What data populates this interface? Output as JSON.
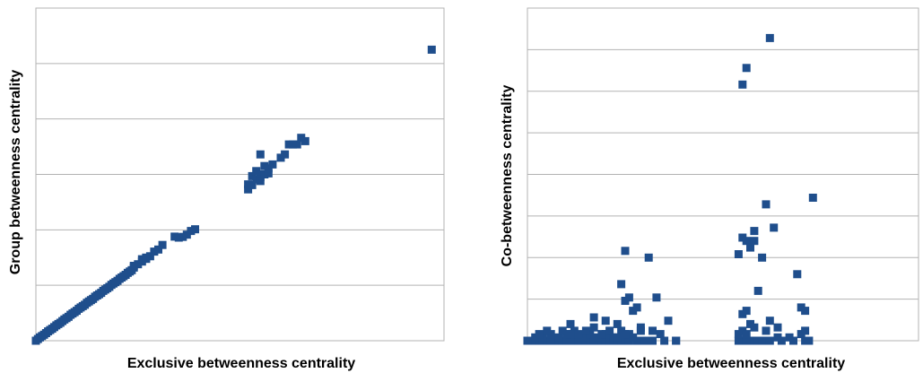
{
  "chart_data": [
    {
      "type": "scatter",
      "xlabel": "Exclusive betweenness centrality",
      "ylabel": "Group betweenness centrality",
      "xlim": [
        0,
        100
      ],
      "ylim": [
        0,
        100
      ],
      "grid": "horizontal",
      "tick_labels": "none",
      "marker": "square",
      "color": "#1f4e8c",
      "points": [
        [
          0,
          0
        ],
        [
          0.5,
          0.5
        ],
        [
          1,
          1
        ],
        [
          1.5,
          1.4
        ],
        [
          2,
          1.8
        ],
        [
          2.5,
          2.3
        ],
        [
          3,
          2.8
        ],
        [
          3.5,
          3.2
        ],
        [
          4,
          3.6
        ],
        [
          4.5,
          4.1
        ],
        [
          5,
          4.6
        ],
        [
          5.5,
          5
        ],
        [
          6,
          5.4
        ],
        [
          6.5,
          5.9
        ],
        [
          7,
          6.4
        ],
        [
          7.5,
          6.8
        ],
        [
          8,
          7.2
        ],
        [
          8.5,
          7.8
        ],
        [
          9,
          8.2
        ],
        [
          9.5,
          8.6
        ],
        [
          10,
          9
        ],
        [
          10.5,
          9.6
        ],
        [
          11,
          10
        ],
        [
          11.5,
          10.4
        ],
        [
          12,
          10.8
        ],
        [
          12.5,
          11.4
        ],
        [
          13,
          11.8
        ],
        [
          13.5,
          12.2
        ],
        [
          14,
          12.6
        ],
        [
          14.5,
          13.2
        ],
        [
          15,
          13.6
        ],
        [
          15.5,
          14
        ],
        [
          16,
          14.4
        ],
        [
          16.5,
          15
        ],
        [
          17,
          15.4
        ],
        [
          17.5,
          15.8
        ],
        [
          18,
          16.2
        ],
        [
          18.5,
          16.8
        ],
        [
          19,
          17.2
        ],
        [
          19.5,
          17.6
        ],
        [
          20,
          18
        ],
        [
          20.5,
          18.6
        ],
        [
          21,
          19
        ],
        [
          21.5,
          19.4
        ],
        [
          22,
          19.8
        ],
        [
          22.5,
          20.4
        ],
        [
          23,
          20.8
        ],
        [
          23.5,
          21.2
        ],
        [
          24,
          22
        ],
        [
          25,
          23
        ],
        [
          26,
          23.8
        ],
        [
          27,
          24.6
        ],
        [
          28,
          25.4
        ],
        [
          29,
          26.8
        ],
        [
          30,
          27.4
        ],
        [
          31,
          28.8
        ],
        [
          26,
          24.5
        ],
        [
          24,
          22.5
        ],
        [
          27,
          25
        ],
        [
          34,
          31.3
        ],
        [
          35,
          31
        ],
        [
          36,
          31.2
        ],
        [
          37,
          31.9
        ],
        [
          38,
          33
        ],
        [
          39,
          33.5
        ],
        [
          52,
          45.5
        ],
        [
          52,
          47
        ],
        [
          53,
          46.8
        ],
        [
          53,
          49.5
        ],
        [
          54,
          48.5
        ],
        [
          55,
          49.2
        ],
        [
          55,
          50
        ],
        [
          56,
          50
        ],
        [
          57,
          50.3
        ],
        [
          54,
          51
        ],
        [
          56,
          52.5
        ],
        [
          57,
          51.8
        ],
        [
          55,
          48
        ],
        [
          58,
          53
        ],
        [
          60,
          55
        ],
        [
          61,
          56
        ],
        [
          55,
          56
        ],
        [
          62,
          59
        ],
        [
          63,
          59
        ],
        [
          64,
          59
        ],
        [
          65,
          61
        ],
        [
          66,
          60
        ],
        [
          97,
          87.5
        ]
      ]
    },
    {
      "type": "scatter",
      "xlabel": "Exclusive betweenness centrality",
      "ylabel": "Co-betweenness centrality",
      "xlim": [
        0,
        100
      ],
      "ylim": [
        0,
        100
      ],
      "grid": "horizontal",
      "tick_labels": "none",
      "marker": "square",
      "color": "#1f4e8c",
      "points": [
        [
          0,
          0
        ],
        [
          1,
          0
        ],
        [
          2,
          0
        ],
        [
          3,
          0
        ],
        [
          4,
          0
        ],
        [
          5,
          0
        ],
        [
          6,
          0
        ],
        [
          7,
          0
        ],
        [
          8,
          0
        ],
        [
          9,
          0
        ],
        [
          10,
          0
        ],
        [
          11,
          0
        ],
        [
          12,
          0
        ],
        [
          13,
          0
        ],
        [
          14,
          0
        ],
        [
          15,
          0
        ],
        [
          16,
          0
        ],
        [
          17,
          0
        ],
        [
          18,
          0
        ],
        [
          19,
          0
        ],
        [
          20,
          0
        ],
        [
          21,
          0
        ],
        [
          22,
          0
        ],
        [
          23,
          0
        ],
        [
          24,
          0
        ],
        [
          25,
          0
        ],
        [
          26,
          0
        ],
        [
          28,
          0
        ],
        [
          30,
          0
        ],
        [
          32,
          0
        ],
        [
          35,
          0
        ],
        [
          38,
          0
        ],
        [
          2,
          1
        ],
        [
          4,
          1
        ],
        [
          6,
          2
        ],
        [
          8,
          1
        ],
        [
          10,
          2
        ],
        [
          12,
          3
        ],
        [
          14,
          1
        ],
        [
          16,
          2
        ],
        [
          18,
          1
        ],
        [
          20,
          2
        ],
        [
          22,
          1
        ],
        [
          24,
          3
        ],
        [
          26,
          2
        ],
        [
          3,
          2
        ],
        [
          5,
          3
        ],
        [
          9,
          3
        ],
        [
          11,
          2
        ],
        [
          13,
          2
        ],
        [
          15,
          3
        ],
        [
          17,
          4
        ],
        [
          19,
          2
        ],
        [
          21,
          3
        ],
        [
          23,
          1
        ],
        [
          25,
          2
        ],
        [
          27,
          1
        ],
        [
          29,
          3
        ],
        [
          11,
          5
        ],
        [
          17,
          7
        ],
        [
          20,
          6
        ],
        [
          23,
          5
        ],
        [
          25,
          12
        ],
        [
          27,
          9
        ],
        [
          28,
          10
        ],
        [
          24,
          17
        ],
        [
          25,
          27
        ],
        [
          26,
          13
        ],
        [
          31,
          25
        ],
        [
          29,
          4
        ],
        [
          32,
          3
        ],
        [
          33,
          13
        ],
        [
          34,
          2
        ],
        [
          36,
          6
        ],
        [
          38,
          0
        ],
        [
          54,
          0
        ],
        [
          55,
          0
        ],
        [
          56,
          0
        ],
        [
          57,
          0
        ],
        [
          58,
          0
        ],
        [
          59,
          0
        ],
        [
          60,
          0
        ],
        [
          62,
          0
        ],
        [
          65,
          0
        ],
        [
          68,
          0
        ],
        [
          71,
          0
        ],
        [
          72,
          0
        ],
        [
          54,
          2
        ],
        [
          55,
          3
        ],
        [
          56,
          2
        ],
        [
          57,
          5
        ],
        [
          58,
          4
        ],
        [
          61,
          3
        ],
        [
          64,
          4
        ],
        [
          67,
          1
        ],
        [
          70,
          2
        ],
        [
          71,
          3
        ],
        [
          55,
          8
        ],
        [
          56,
          9
        ],
        [
          59,
          15
        ],
        [
          60,
          25
        ],
        [
          62,
          6
        ],
        [
          64,
          1
        ],
        [
          54,
          26
        ],
        [
          55,
          31
        ],
        [
          56,
          30
        ],
        [
          57,
          28
        ],
        [
          58,
          30
        ],
        [
          58,
          33
        ],
        [
          63,
          34
        ],
        [
          69,
          20
        ],
        [
          70,
          10
        ],
        [
          71,
          9
        ],
        [
          55,
          77
        ],
        [
          56,
          82
        ],
        [
          62,
          91
        ],
        [
          61,
          41
        ],
        [
          73,
          43
        ]
      ]
    }
  ]
}
